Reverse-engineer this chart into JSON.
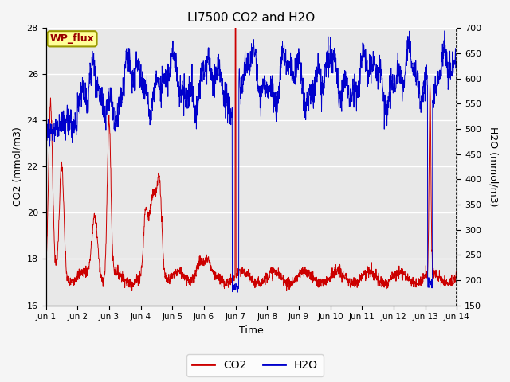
{
  "title": "LI7500 CO2 and H2O",
  "xlabel": "Time",
  "ylabel_left": "CO2 (mmol/m3)",
  "ylabel_right": "H2O (mmol/m3)",
  "annotation": "WP_flux",
  "co2_ylim": [
    16,
    28
  ],
  "h2o_ylim": [
    150,
    700
  ],
  "co2_yticks": [
    16,
    18,
    20,
    22,
    24,
    26,
    28
  ],
  "h2o_yticks": [
    150,
    200,
    250,
    300,
    350,
    400,
    450,
    500,
    550,
    600,
    650,
    700
  ],
  "xtick_labels": [
    "Jun 1",
    "Jun 2",
    "Jun 3",
    "Jun 4",
    "Jun 5",
    "Jun 6",
    "Jun 7",
    "Jun 8",
    "Jun 9",
    "Jun 10",
    "Jun 11",
    "Jun 12",
    "Jun 13",
    "Jun 14"
  ],
  "co2_color": "#cc0000",
  "h2o_color": "#0000cc",
  "plot_bg": "#e8e8e8",
  "fig_bg": "#f5f5f5",
  "grid_color": "#ffffff",
  "annotation_bg": "#ffff99",
  "annotation_border": "#999900",
  "annotation_text_color": "#990000"
}
